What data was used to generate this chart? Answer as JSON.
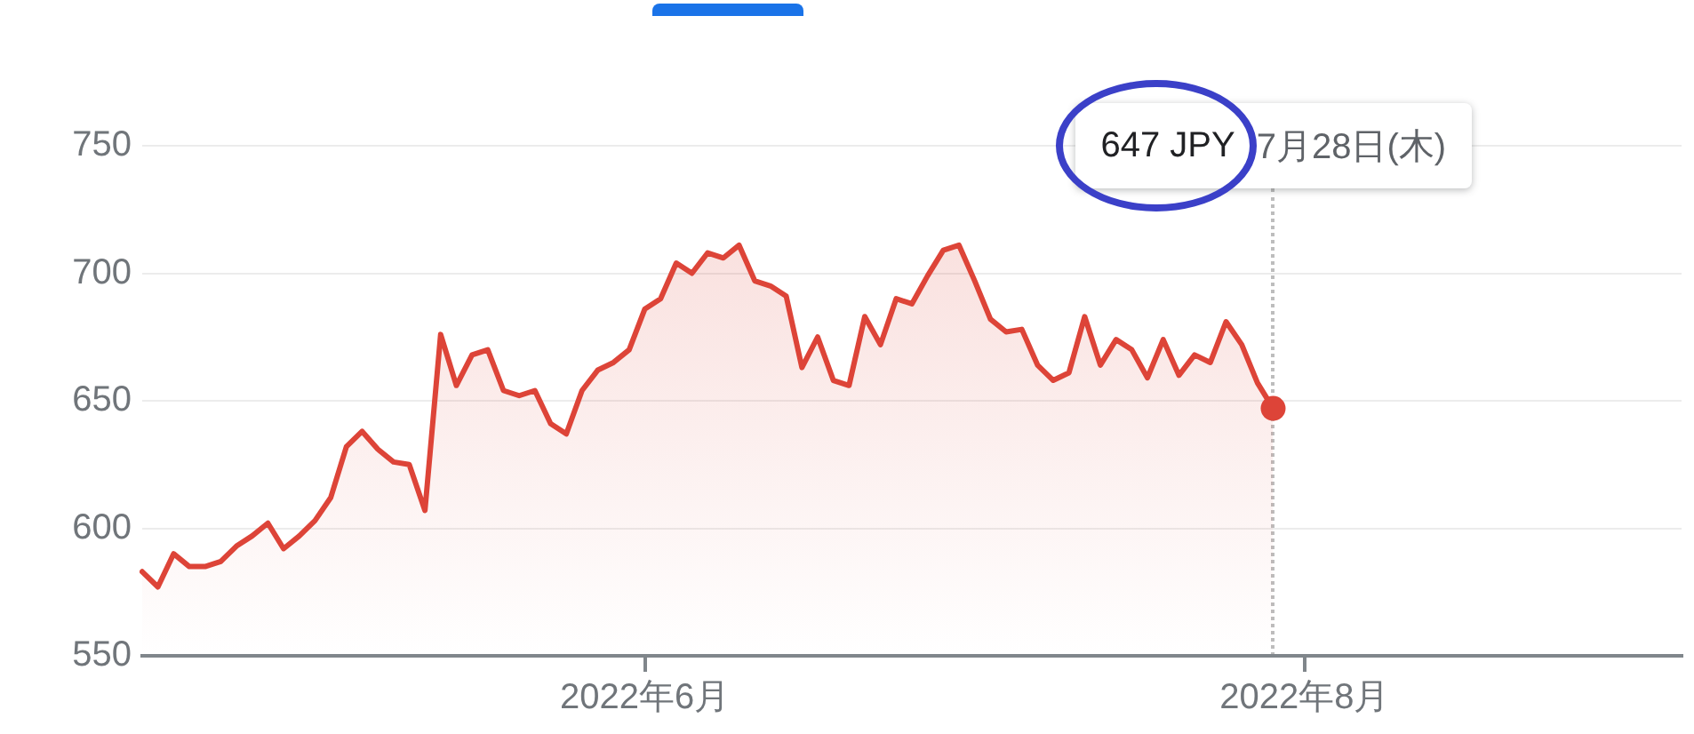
{
  "chart_data": {
    "type": "area",
    "categories": [
      null,
      null,
      null,
      null,
      null,
      null,
      null,
      null,
      null,
      null,
      null,
      null,
      null,
      null,
      null,
      null,
      null,
      null,
      null,
      null,
      null,
      null,
      null,
      null,
      null,
      null,
      null,
      null,
      null,
      null,
      null,
      null,
      "2022年6月",
      null,
      null,
      null,
      null,
      null,
      null,
      null,
      null,
      null,
      null,
      null,
      null,
      null,
      null,
      null,
      null,
      null,
      null,
      null,
      null,
      null,
      null,
      null,
      null,
      null,
      null,
      null,
      null,
      null,
      null,
      null,
      null,
      null,
      null,
      null,
      null,
      null,
      null,
      null,
      null,
      null,
      "2022年8月",
      null,
      null,
      null,
      null,
      null,
      null,
      null,
      null,
      null,
      null,
      null,
      null,
      null,
      null,
      null,
      null,
      null,
      null,
      null,
      null,
      null,
      null,
      null,
      null
    ],
    "series": [
      {
        "color": "#dd4438",
        "values": [
          583,
          577,
          590,
          585,
          585,
          587,
          593,
          597,
          602,
          592,
          597,
          603,
          612,
          632,
          638,
          631,
          626,
          625,
          607,
          676,
          656,
          668,
          670,
          654,
          652,
          654,
          641,
          637,
          654,
          662,
          665,
          670,
          686,
          690,
          704,
          700,
          708,
          706,
          711,
          697,
          695,
          691,
          663,
          675,
          658,
          656,
          683,
          672,
          690,
          688,
          699,
          709,
          711,
          697,
          682,
          677,
          678,
          664,
          658,
          661,
          683,
          664,
          674,
          670,
          659,
          674,
          660,
          668,
          665,
          681,
          672,
          657,
          647,
          null,
          null,
          null,
          null,
          null,
          null,
          null,
          null,
          null,
          null,
          null,
          null,
          null,
          null,
          null,
          null,
          null,
          null,
          null,
          null,
          null,
          null,
          null,
          null,
          null,
          null
        ]
      },
      {
        "type": "scatter",
        "color": "#dd4438",
        "marker": "circle",
        "values": [
          null,
          null,
          null,
          null,
          null,
          null,
          null,
          null,
          null,
          null,
          null,
          null,
          null,
          null,
          null,
          null,
          null,
          null,
          null,
          null,
          null,
          null,
          null,
          null,
          null,
          null,
          null,
          null,
          null,
          null,
          null,
          null,
          null,
          null,
          null,
          null,
          null,
          null,
          null,
          null,
          null,
          null,
          null,
          null,
          null,
          null,
          null,
          null,
          null,
          null,
          null,
          null,
          null,
          null,
          null,
          null,
          null,
          null,
          null,
          null,
          null,
          null,
          null,
          null,
          null,
          null,
          null,
          null,
          null,
          null,
          null,
          null,
          647,
          null,
          null,
          null,
          null,
          null,
          null,
          null,
          null,
          null,
          null,
          null,
          null,
          null,
          null,
          null,
          null,
          null,
          null,
          null,
          null,
          null,
          null,
          null,
          null,
          null,
          null
        ]
      }
    ],
    "ylim": [
      550,
      750
    ],
    "yticks": [
      550,
      600,
      650,
      700,
      750
    ],
    "grid": "y",
    "annotations": [
      "647 JPY",
      "7月28日(木)"
    ]
  }
}
